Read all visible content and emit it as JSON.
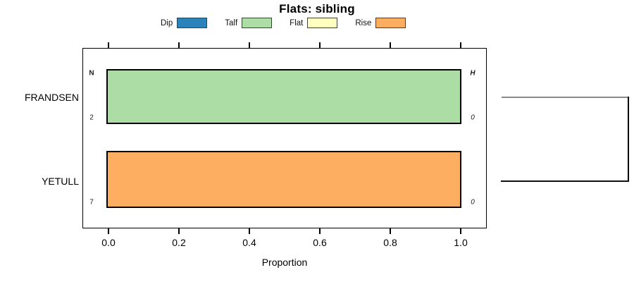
{
  "chart_data": {
    "type": "bar",
    "orientation": "horizontal",
    "title": "Flats: sibling",
    "xlabel": "Proportion",
    "xlim": [
      0,
      1
    ],
    "x_ticks": [
      "0.0",
      "0.2",
      "0.4",
      "0.6",
      "0.8",
      "1.0"
    ],
    "grid": false,
    "legend_position": "top",
    "legend": [
      {
        "label": "Dip",
        "color": "#2B83BA"
      },
      {
        "label": "Talf",
        "color": "#ABDDA4"
      },
      {
        "label": "Flat",
        "color": "#FFFFBF"
      },
      {
        "label": "Rise",
        "color": "#FDAE61"
      }
    ],
    "column_headers": {
      "left": "N",
      "right": "H"
    },
    "rows": [
      {
        "category": "FRANDSEN",
        "value": 1.0,
        "segment": "Talf",
        "color": "#ABDDA4",
        "n": "2",
        "h": "0"
      },
      {
        "category": "YETULL",
        "value": 1.0,
        "segment": "Rise",
        "color": "#FDAE61",
        "n": "7",
        "h": "0"
      }
    ]
  },
  "colors": {
    "bar_border": "#000000",
    "plot_border": "#000000",
    "dendrogram_top_line": "#8a8a8a",
    "dendrogram_bottom_line": "#111111",
    "dendrogram_vertical_line": "#000000"
  }
}
